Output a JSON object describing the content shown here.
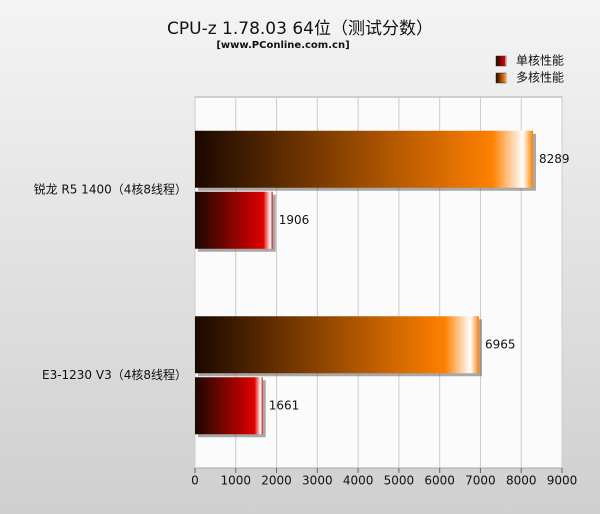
{
  "chart_data": {
    "type": "bar",
    "orientation": "horizontal",
    "title": "CPU-z 1.78.03 64位（测试分数）",
    "subtitle": "[www.PConline.com.cn]",
    "categories": [
      "锐龙 R5 1400（4核8线程）",
      "E3-1230 V3（4核8线程）"
    ],
    "series": [
      {
        "name": "单核性能",
        "color": "#e00000",
        "values": [
          1906,
          1661
        ]
      },
      {
        "name": "多核性能",
        "color": "#ff8000",
        "values": [
          8289,
          6965
        ]
      }
    ],
    "xlim": [
      0,
      9000
    ],
    "xticks": [
      0,
      1000,
      2000,
      3000,
      4000,
      5000,
      6000,
      7000,
      8000,
      9000
    ],
    "grid": true,
    "legend": "top-right"
  }
}
